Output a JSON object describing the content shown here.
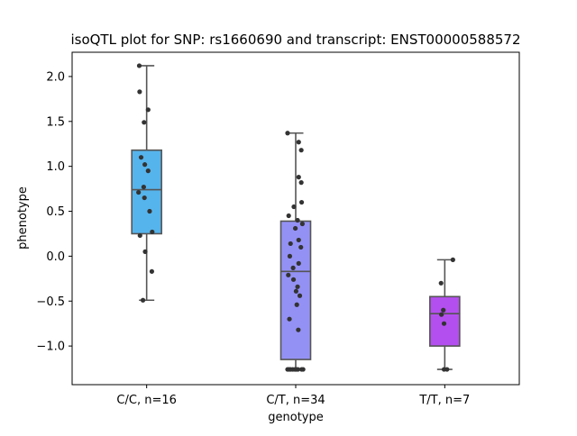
{
  "chart_data": {
    "type": "box",
    "title": "isoQTL plot for SNP: rs1660690 and transcript: ENST00000588572",
    "xlabel": "genotype",
    "ylabel": "phenotype",
    "ylim": [
      -1.43,
      2.27
    ],
    "yticks": [
      -1.0,
      -0.5,
      0.0,
      0.5,
      1.0,
      1.5,
      2.0
    ],
    "ytick_labels": [
      "−1.0",
      "−0.5",
      "0.0",
      "0.5",
      "1.0",
      "1.5",
      "2.0"
    ],
    "grid": false,
    "categories": [
      "C/C, n=16",
      "C/T, n=34",
      "T/T, n=7"
    ],
    "box_colors": [
      "#56b4ec",
      "#9491f5",
      "#b44fef"
    ],
    "point_color": "#333333",
    "box_edge_color": "#555555",
    "boxes": [
      {
        "category": "C/C, n=16",
        "whisker_low": -0.49,
        "q1": 0.25,
        "median": 0.74,
        "q3": 1.18,
        "whisker_high": 2.12
      },
      {
        "category": "C/T, n=34",
        "whisker_low": -1.26,
        "q1": -1.15,
        "median": -0.17,
        "q3": 0.39,
        "whisker_high": 1.37
      },
      {
        "category": "T/T, n=7",
        "whisker_low": -1.26,
        "q1": -1.0,
        "median": -0.64,
        "q3": -0.45,
        "whisker_high": -0.04
      }
    ],
    "points": [
      [
        [
          -0.2,
          2.12
        ],
        [
          -0.19,
          1.83
        ],
        [
          -0.07,
          1.49
        ],
        [
          0.04,
          1.63
        ],
        [
          -0.15,
          1.1
        ],
        [
          -0.05,
          1.02
        ],
        [
          0.04,
          0.95
        ],
        [
          -0.08,
          0.77
        ],
        [
          -0.22,
          0.71
        ],
        [
          -0.06,
          0.65
        ],
        [
          0.08,
          0.5
        ],
        [
          -0.18,
          0.23
        ],
        [
          0.15,
          0.27
        ],
        [
          -0.04,
          0.05
        ],
        [
          0.14,
          -0.17
        ],
        [
          -0.1,
          -0.49
        ]
      ],
      [
        [
          -0.22,
          1.37
        ],
        [
          0.08,
          1.27
        ],
        [
          0.15,
          1.18
        ],
        [
          0.08,
          0.88
        ],
        [
          0.15,
          0.82
        ],
        [
          0.16,
          0.6
        ],
        [
          -0.05,
          0.55
        ],
        [
          -0.19,
          0.45
        ],
        [
          0.05,
          0.4
        ],
        [
          0.18,
          0.36
        ],
        [
          -0.01,
          0.31
        ],
        [
          0.08,
          0.18
        ],
        [
          -0.14,
          0.14
        ],
        [
          0.14,
          0.1
        ],
        [
          -0.16,
          0.0
        ],
        [
          0.08,
          -0.08
        ],
        [
          -0.07,
          -0.13
        ],
        [
          -0.2,
          -0.21
        ],
        [
          -0.06,
          -0.26
        ],
        [
          0.05,
          -0.34
        ],
        [
          0.01,
          -0.39
        ],
        [
          0.11,
          -0.44
        ],
        [
          0.03,
          -0.54
        ],
        [
          -0.17,
          -0.7
        ],
        [
          0.07,
          -0.82
        ],
        [
          -0.22,
          -1.26
        ],
        [
          -0.18,
          -1.26
        ],
        [
          -0.14,
          -1.26
        ],
        [
          -0.08,
          -1.26
        ],
        [
          -0.02,
          -1.26
        ],
        [
          0.02,
          -1.26
        ],
        [
          0.06,
          -1.26
        ],
        [
          0.16,
          -1.26
        ],
        [
          0.2,
          -1.26
        ]
      ],
      [
        [
          0.22,
          -0.04
        ],
        [
          -0.1,
          -0.3
        ],
        [
          -0.04,
          -0.6
        ],
        [
          -0.09,
          -0.65
        ],
        [
          -0.02,
          -0.75
        ],
        [
          -0.02,
          -1.26
        ],
        [
          0.06,
          -1.26
        ]
      ]
    ]
  }
}
